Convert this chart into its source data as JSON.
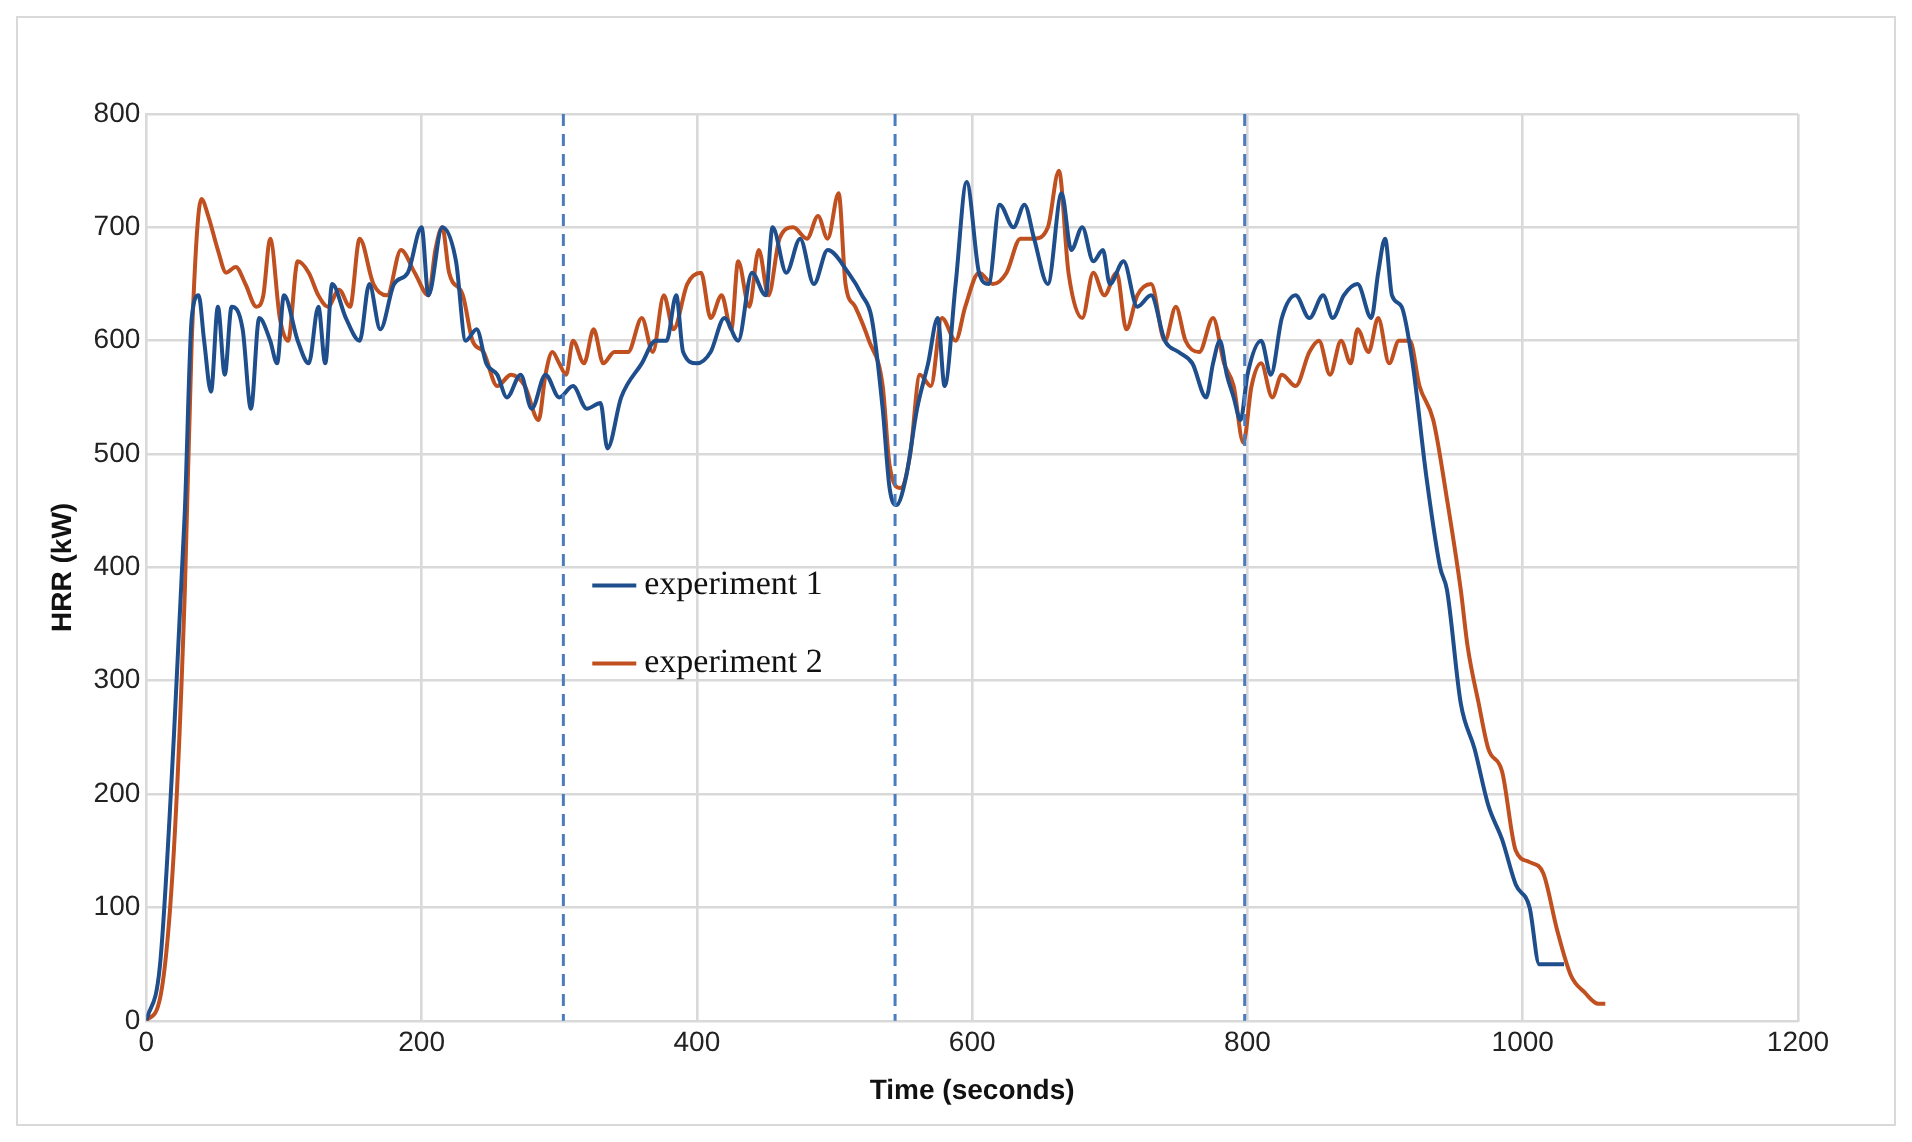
{
  "chart_data": {
    "type": "line",
    "xlabel": "Time (seconds)",
    "ylabel": "HRR (kW)",
    "xlim": [
      0,
      1200
    ],
    "xticks": [
      0,
      200,
      400,
      600,
      800,
      1000,
      1200
    ],
    "ylim": [
      0,
      800
    ],
    "yticks": [
      0,
      100,
      200,
      300,
      400,
      500,
      600,
      700,
      800
    ],
    "grid": true,
    "legend": "left",
    "marker": "none",
    "line_style": "solid",
    "ref_lines": [
      {
        "axis": "x",
        "value": 303,
        "color": "#4a7cc0",
        "line_style": "dashed"
      },
      {
        "axis": "x",
        "value": 544,
        "color": "#4a7cc0",
        "line_style": "dashed"
      },
      {
        "axis": "x",
        "value": 798,
        "color": "#4a7cc0",
        "line_style": "dashed"
      }
    ],
    "series": [
      {
        "name": "experiment 1",
        "color": "#1f4e8c",
        "x": [
          0,
          10,
          20,
          28,
          33,
          38,
          42,
          47,
          52,
          57,
          62,
          70,
          76,
          82,
          90,
          95,
          100,
          110,
          118,
          125,
          130,
          135,
          145,
          155,
          162,
          170,
          180,
          190,
          200,
          205,
          215,
          225,
          232,
          240,
          247,
          255,
          262,
          272,
          280,
          290,
          300,
          310,
          320,
          330,
          335,
          345,
          360,
          370,
          378,
          385,
          390,
          400,
          410,
          420,
          430,
          440,
          450,
          455,
          465,
          475,
          485,
          495,
          510,
          520,
          527,
          535,
          540,
          545,
          552,
          560,
          568,
          575,
          580,
          588,
          596,
          605,
          612,
          620,
          630,
          638,
          645,
          655,
          665,
          672,
          680,
          688,
          695,
          700,
          710,
          720,
          730,
          740,
          750,
          760,
          770,
          775,
          780,
          785,
          790,
          795,
          800,
          810,
          817,
          825,
          835,
          845,
          855,
          862,
          870,
          880,
          890,
          895,
          900,
          905,
          912,
          920,
          930,
          940,
          945,
          955,
          965,
          975,
          985,
          995,
          1005,
          1012,
          1020,
          1030
        ],
        "values": [
          0,
          50,
          250,
          450,
          620,
          640,
          600,
          555,
          630,
          570,
          630,
          610,
          540,
          620,
          600,
          580,
          640,
          600,
          580,
          630,
          580,
          650,
          620,
          600,
          650,
          610,
          650,
          660,
          700,
          640,
          700,
          670,
          600,
          610,
          580,
          570,
          550,
          570,
          540,
          570,
          550,
          560,
          540,
          545,
          505,
          550,
          580,
          600,
          600,
          640,
          590,
          580,
          590,
          620,
          600,
          660,
          640,
          700,
          660,
          690,
          650,
          680,
          660,
          640,
          620,
          540,
          470,
          455,
          480,
          540,
          580,
          620,
          560,
          650,
          740,
          660,
          650,
          720,
          700,
          720,
          690,
          650,
          730,
          680,
          700,
          670,
          680,
          650,
          670,
          630,
          640,
          600,
          590,
          580,
          550,
          580,
          600,
          570,
          550,
          530,
          570,
          600,
          570,
          620,
          640,
          620,
          640,
          620,
          640,
          650,
          620,
          660,
          690,
          640,
          630,
          580,
          480,
          400,
          380,
          280,
          240,
          190,
          160,
          120,
          100,
          50,
          50,
          50
        ]
      },
      {
        "name": "experiment 2",
        "color": "#c0501f",
        "x": [
          0,
          10,
          20,
          28,
          33,
          40,
          45,
          52,
          58,
          65,
          72,
          80,
          85,
          90,
          97,
          103,
          110,
          118,
          125,
          132,
          140,
          148,
          155,
          165,
          175,
          185,
          195,
          205,
          210,
          215,
          220,
          230,
          237,
          245,
          255,
          265,
          275,
          285,
          290,
          295,
          300,
          305,
          310,
          318,
          325,
          332,
          340,
          350,
          360,
          368,
          376,
          383,
          393,
          403,
          410,
          418,
          425,
          430,
          438,
          445,
          452,
          460,
          470,
          480,
          488,
          495,
          503,
          508,
          515,
          525,
          535,
          540,
          548,
          555,
          562,
          570,
          578,
          588,
          595,
          605,
          615,
          625,
          635,
          645,
          655,
          663,
          670,
          680,
          688,
          696,
          705,
          712,
          720,
          730,
          740,
          748,
          755,
          765,
          775,
          783,
          790,
          797,
          803,
          810,
          818,
          825,
          835,
          845,
          852,
          860,
          868,
          875,
          880,
          888,
          895,
          903,
          910,
          918,
          925,
          935,
          945,
          955,
          960,
          968,
          975,
          985,
          995,
          1005,
          1015,
          1025,
          1035,
          1045,
          1055,
          1060
        ],
        "values": [
          0,
          20,
          150,
          380,
          600,
          725,
          710,
          680,
          660,
          665,
          650,
          630,
          640,
          690,
          620,
          600,
          670,
          660,
          640,
          630,
          645,
          630,
          690,
          650,
          640,
          680,
          660,
          640,
          680,
          700,
          660,
          640,
          600,
          590,
          560,
          570,
          560,
          530,
          570,
          590,
          580,
          570,
          600,
          580,
          610,
          580,
          590,
          590,
          620,
          590,
          640,
          610,
          650,
          660,
          620,
          640,
          610,
          670,
          630,
          680,
          640,
          690,
          700,
          690,
          710,
          690,
          730,
          650,
          630,
          600,
          560,
          490,
          470,
          500,
          570,
          560,
          620,
          600,
          630,
          660,
          650,
          660,
          690,
          690,
          700,
          750,
          660,
          620,
          660,
          640,
          660,
          610,
          640,
          650,
          600,
          630,
          600,
          590,
          620,
          580,
          560,
          510,
          560,
          580,
          550,
          570,
          560,
          590,
          600,
          570,
          600,
          580,
          610,
          590,
          620,
          580,
          600,
          600,
          560,
          530,
          460,
          380,
          330,
          280,
          240,
          220,
          150,
          140,
          130,
          80,
          40,
          25,
          15,
          15
        ]
      }
    ]
  }
}
